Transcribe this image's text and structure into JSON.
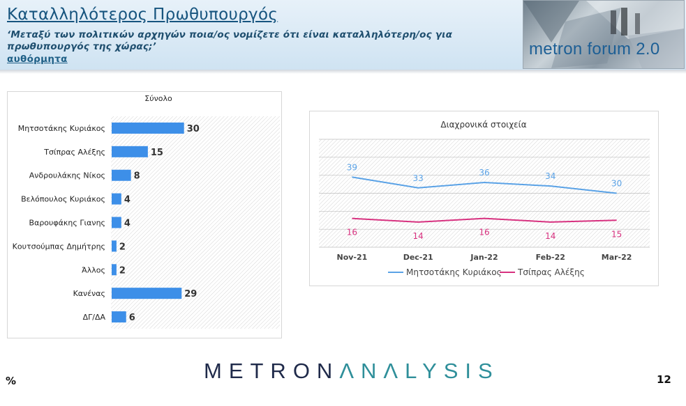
{
  "header": {
    "title": "Καταλληλότερος Πρωθυπουργός",
    "question": "‘Μεταξύ των πολιτικών αρχηγών ποια/ος νομίζετε ότι είναι καταλληλότερη/ος για πρωθυπουργός της χώρας;’",
    "spontaneous": "αυθόρμητα",
    "logo_text": "metron forum 2.0"
  },
  "colors": {
    "bar": "#3d8fe8",
    "line1": "#5aa2e6",
    "line2": "#d7317f"
  },
  "chart_data": [
    {
      "type": "bar",
      "title": "Σύνολο",
      "orientation": "horizontal",
      "categories": [
        "Μητσοτάκης Κυριάκος",
        "Τσίπρας Αλέξης",
        "Ανδρουλάκης Νίκος",
        "Βελόπουλος Κυριάκος",
        "Βαρουφάκης Γιανης",
        "Κουτσούμπας Δημήτρης",
        "Άλλος",
        "Κανένας",
        "ΔΓ/ΔΑ"
      ],
      "values": [
        30,
        15,
        8,
        4,
        4,
        2,
        2,
        29,
        6
      ],
      "value_labels": [
        "30",
        "15",
        "8",
        "4",
        "4",
        "2",
        "2",
        "29",
        "6"
      ],
      "xlim": [
        0,
        70
      ],
      "grid": false,
      "legend": "none"
    },
    {
      "type": "line",
      "title": "Διαχρονικά στοιχεία",
      "x": [
        "Nov-21",
        "Dec-21",
        "Jan-22",
        "Feb-22",
        "Mar-22"
      ],
      "series": [
        {
          "name": "Μητσοτάκης Κυριάκος",
          "values": [
            39,
            33,
            36,
            34,
            30
          ],
          "value_labels": [
            "39",
            "33",
            "36",
            "34",
            "30"
          ]
        },
        {
          "name": "Τσίπρας Αλέξης",
          "values": [
            16,
            14,
            16,
            14,
            15
          ],
          "value_labels": [
            "16",
            "14",
            "16",
            "14",
            "15"
          ]
        }
      ],
      "ylim": [
        0,
        60
      ],
      "grid": true,
      "legend": "bottom"
    }
  ],
  "footer": {
    "logo_part1": "METRON",
    "logo_part2": "ΛNΛLYSIS",
    "unit": "%",
    "page_number": "12"
  }
}
